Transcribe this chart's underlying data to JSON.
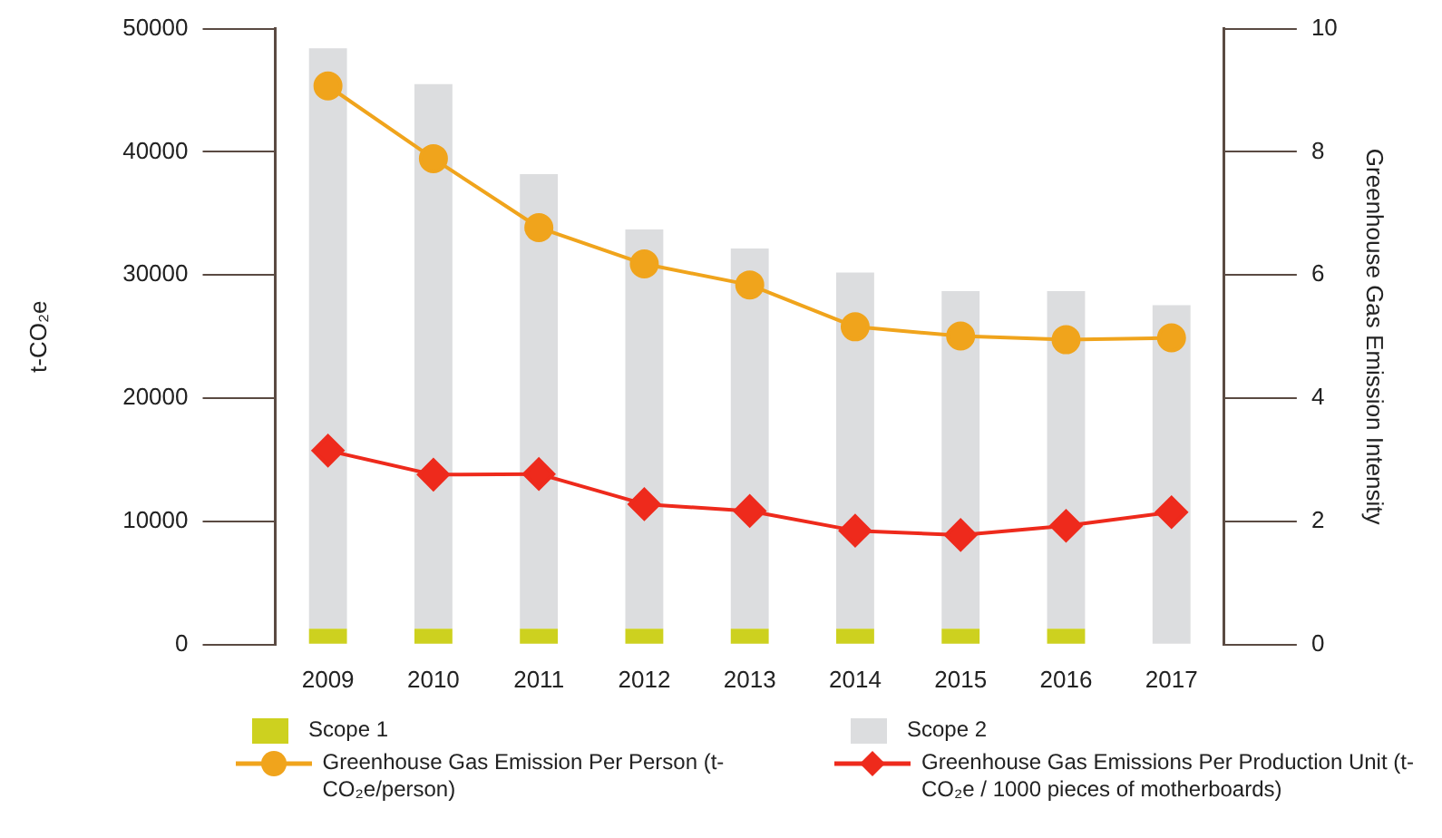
{
  "chart_data": {
    "type": "bar",
    "stacked": true,
    "categories": [
      "2009",
      "2010",
      "2011",
      "2012",
      "2013",
      "2014",
      "2015",
      "2016",
      "2017"
    ],
    "ylabel": "t-CO₂e",
    "y2label": "Greenhouse Gas Emission Intensity",
    "ylim": [
      0,
      50000
    ],
    "yticks": [
      0,
      10000,
      20000,
      30000,
      40000,
      50000
    ],
    "y2lim": [
      0,
      10
    ],
    "y2ticks": [
      0,
      2,
      4,
      6,
      8,
      10
    ],
    "grid": false,
    "legend": "bottom",
    "series": [
      {
        "name": "Scope 1",
        "color": "#cdd11f",
        "values": [
          1300,
          1300,
          1300,
          1300,
          1300,
          1300,
          1300,
          1300,
          null
        ]
      },
      {
        "name": "Scope 2",
        "color": "#dcdddf",
        "values": [
          47100,
          44200,
          36900,
          32400,
          30850,
          28900,
          27400,
          27400,
          27550
        ]
      },
      {
        "name": "Greenhouse Gas Emission Per Person (t-CO₂e/person)",
        "type": "line",
        "axis": "y2",
        "marker": "circle",
        "color": "#f0a41c",
        "values": [
          9.07,
          7.89,
          6.77,
          6.18,
          5.84,
          5.16,
          5.01,
          4.95,
          4.98
        ]
      },
      {
        "name": "Greenhouse Gas Emissions Per Production Unit (t-CO₂e / 1000 pieces of motherboards)",
        "type": "line",
        "axis": "y2",
        "marker": "diamond",
        "color": "#ee2a1c",
        "values": [
          3.15,
          2.76,
          2.77,
          2.28,
          2.17,
          1.85,
          1.78,
          1.93,
          2.15
        ]
      }
    ]
  }
}
